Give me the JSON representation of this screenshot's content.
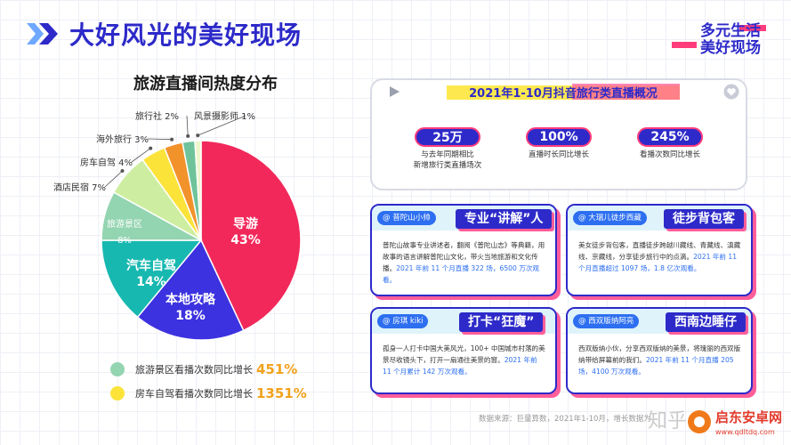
{
  "header": {
    "title": "大好风光的美好现场",
    "logo_line1": "多元生活",
    "logo_line2": "美好现场"
  },
  "chart_data": {
    "type": "pie",
    "title": "旅游直播间热度分布",
    "unit": "%",
    "slices": [
      {
        "label": "导游",
        "value": 43,
        "color": "#f2285a",
        "label_inside": true
      },
      {
        "label": "本地攻略",
        "value": 18,
        "color": "#3c32e0",
        "label_inside": true
      },
      {
        "label": "汽车自驾",
        "value": 14,
        "color": "#17b8b0",
        "label_inside": true
      },
      {
        "label": "旅游景区",
        "value": 8,
        "color": "#93d4b1",
        "label_inside": true
      },
      {
        "label": "酒店民宿",
        "value": 7,
        "color": "#cdeea0",
        "label_inside": false
      },
      {
        "label": "房车自驾",
        "value": 4,
        "color": "#fbe33a",
        "label_inside": false
      },
      {
        "label": "海外旅行",
        "value": 3,
        "color": "#f2922b",
        "label_inside": false
      },
      {
        "label": "旅行社",
        "value": 2,
        "color": "#6fc39b",
        "label_inside": false
      },
      {
        "label": "风景摄影师",
        "value": 1,
        "color": "#ecf7cc",
        "label_inside": false
      }
    ],
    "display_labels": [
      "导游\n43%",
      "本地攻略\n18%",
      "汽车自驾\n14%",
      "旅游景区\n8%",
      "酒店民宿 7%",
      "房车自驾 4%",
      "海外旅行 3%",
      "旅行社 2%",
      "风景摄影师 1%"
    ]
  },
  "growth_notes": [
    {
      "label": "旅游景区看播次数同比增长",
      "value": "451%",
      "color": "#93d4b1"
    },
    {
      "label": "房车自驾看播次数同比增长",
      "value": "1351%",
      "color": "#fbe33a"
    }
  ],
  "overview": {
    "title": "2021年1-10月抖音旅行类直播概况",
    "stats": [
      {
        "value": "25万",
        "desc_line1": "与去年同期相比",
        "desc_line2": "新增旅行类直播场次"
      },
      {
        "value": "100%",
        "desc_line1": "直播时长同比增长",
        "desc_line2": ""
      },
      {
        "value": "245%",
        "desc_line1": "看播次数同比增长",
        "desc_line2": ""
      }
    ]
  },
  "cards": [
    {
      "handle": "@ 普陀山小帅",
      "heading": "专业“讲解”人",
      "body": "普陀山故事专业讲述者，翻阅《普陀山志》等典籍，用故事的语言讲解普陀山文化，带火当地旅游和文化传播。",
      "highlight": "2021 年前 11 个月直播 322 场，6500 万次观看。"
    },
    {
      "handle": "@ 大瑞儿徒步西藏",
      "heading": "徒步背包客",
      "body": "美女徒步背包客，直播徒步跨越川藏线、青藏线、滇藏线、京藏线，分享徒步旅行中的点滴。",
      "highlight": "2021 年前 11 个月直播超过 1097 场，1.8 亿次观看。"
    },
    {
      "handle": "@ 房琪 kiki",
      "heading": "打卡“狂魔”",
      "body": "孤身一人打卡中国大美风光，100+ 中国城市村落的美景尽收镜头下，打开一扇通往美景的窗。",
      "highlight": "2021 年前 11 个月累计 142 万次观看。"
    },
    {
      "handle": "@ 西双版纳阿亮",
      "heading": "西南边睡仔",
      "body": "西双版纳小伙，分享西双版纳的美景，将瑰丽的西双版纳带给屏幕前的我们。",
      "highlight": "2021 年前 11 个月直播 205 场，4100 万次观看。"
    }
  ],
  "footer": {
    "source": "数据来源：巨量算数，2021年1-10月，增长数据为",
    "watermark_left": "知乎",
    "watermark_brand": "启东安卓网",
    "watermark_url": "www.qdltdq.com"
  }
}
